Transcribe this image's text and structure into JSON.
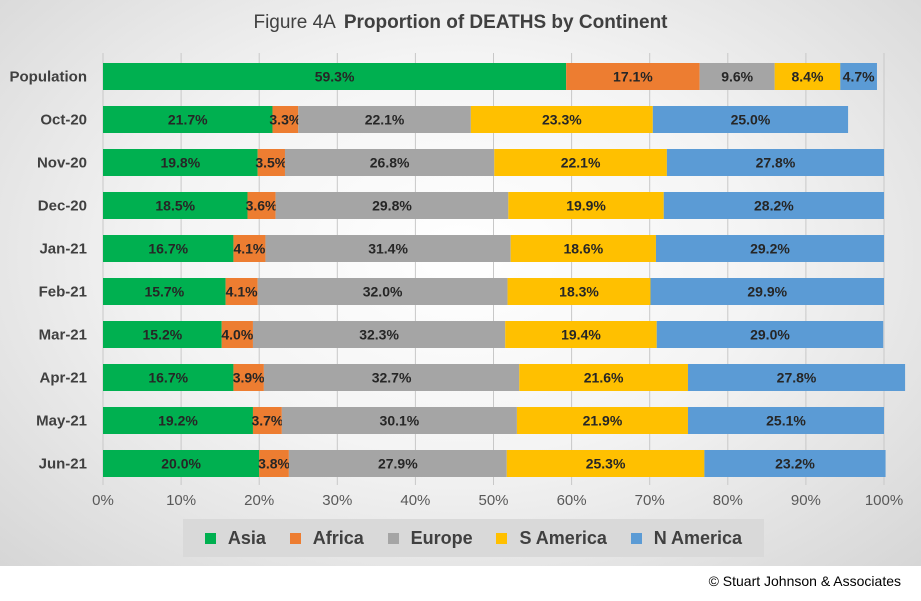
{
  "chart_data": {
    "type": "bar",
    "orientation": "horizontal",
    "stacked": true,
    "title": "Proportion of DEATHS by Continent",
    "figure_label": "Figure  4A",
    "categories": [
      "Population",
      "Oct-20",
      "Nov-20",
      "Dec-20",
      "Jan-21",
      "Feb-21",
      "Mar-21",
      "Apr-21",
      "May-21",
      "Jun-21"
    ],
    "series": [
      {
        "name": "Asia",
        "color": "#00b050",
        "values": [
          59.3,
          21.7,
          19.8,
          18.5,
          16.7,
          15.7,
          15.2,
          16.7,
          19.2,
          20.0
        ]
      },
      {
        "name": "Africa",
        "color": "#ed7d31",
        "values": [
          17.1,
          3.3,
          3.5,
          3.6,
          4.1,
          4.1,
          4.0,
          3.9,
          3.7,
          3.8
        ]
      },
      {
        "name": "Europe",
        "color": "#a5a5a5",
        "values": [
          9.6,
          22.1,
          26.8,
          29.8,
          31.4,
          32.0,
          32.3,
          32.7,
          30.1,
          27.9
        ]
      },
      {
        "name": "S America",
        "color": "#ffc000",
        "values": [
          8.4,
          23.3,
          22.1,
          19.9,
          18.6,
          18.3,
          19.4,
          21.6,
          21.9,
          25.3
        ]
      },
      {
        "name": "N America",
        "color": "#5b9bd5",
        "values": [
          4.7,
          25.0,
          27.8,
          28.2,
          29.2,
          29.9,
          29.0,
          27.8,
          25.1,
          23.2
        ]
      }
    ],
    "data_label_suffix": "%",
    "xlim": [
      0,
      100
    ],
    "x_ticks": [
      "0%",
      "10%",
      "20%",
      "30%",
      "40%",
      "50%",
      "60%",
      "70%",
      "80%",
      "90%",
      "100%"
    ],
    "grid": true,
    "legend_position": "bottom"
  },
  "copyright": "© Stuart Johnson & Associates"
}
